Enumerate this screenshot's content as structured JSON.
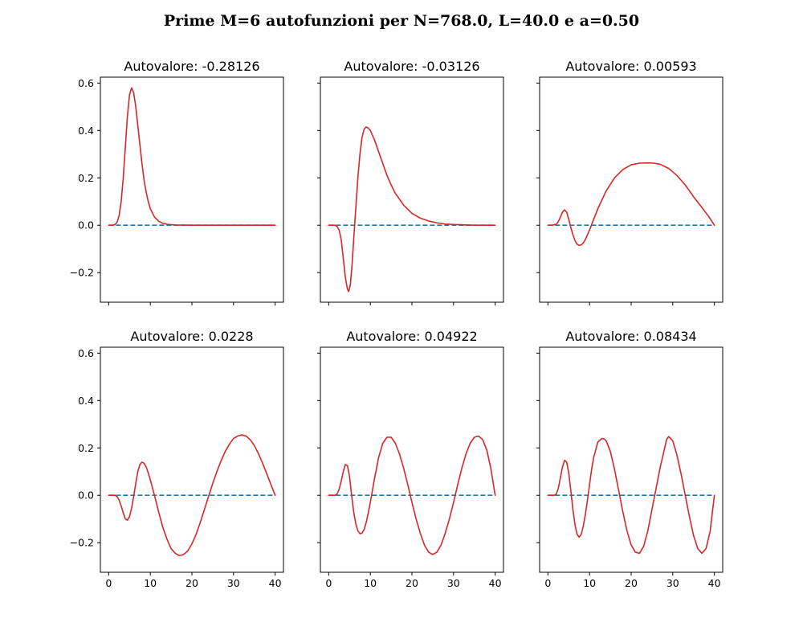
{
  "figure": {
    "title": "Prime M=6 autofunzioni per N=768.0, L=40.0 e a=0.50"
  },
  "chart_data": [
    {
      "type": "line",
      "title": "Autovalore: -0.28126",
      "xlim": [
        -2,
        42
      ],
      "ylim": [
        -0.325,
        0.625
      ],
      "xticks": [
        0,
        10,
        20,
        30,
        40
      ],
      "yticks": [
        -0.2,
        0.0,
        0.2,
        0.4,
        0.6
      ],
      "show_x_labels": false,
      "show_y_labels": true,
      "series": [
        {
          "style": "dashed",
          "color": "#1f77b4",
          "x": [
            0,
            40
          ],
          "y": [
            0,
            0
          ]
        },
        {
          "style": "solid",
          "color": "#d62728",
          "x": [
            0,
            1,
            1.5,
            2,
            2.5,
            3,
            3.5,
            4,
            4.5,
            5,
            5.5,
            6,
            6.5,
            7,
            7.5,
            8,
            8.5,
            9,
            9.5,
            10,
            11,
            12,
            13,
            14,
            16,
            20,
            25,
            30,
            35,
            40
          ],
          "y": [
            0,
            0,
            0.003,
            0.012,
            0.04,
            0.1,
            0.2,
            0.33,
            0.46,
            0.55,
            0.58,
            0.56,
            0.5,
            0.42,
            0.34,
            0.26,
            0.19,
            0.14,
            0.1,
            0.07,
            0.035,
            0.017,
            0.008,
            0.004,
            0.001,
            0,
            0,
            0,
            0,
            0
          ]
        }
      ]
    },
    {
      "type": "line",
      "title": "Autovalore: -0.03126",
      "xlim": [
        -2,
        42
      ],
      "ylim": [
        -0.325,
        0.625
      ],
      "xticks": [
        0,
        10,
        20,
        30,
        40
      ],
      "yticks": [
        -0.2,
        0.0,
        0.2,
        0.4,
        0.6
      ],
      "show_x_labels": false,
      "show_y_labels": false,
      "series": [
        {
          "style": "dashed",
          "color": "#1f77b4",
          "x": [
            0,
            40
          ],
          "y": [
            0,
            0
          ]
        },
        {
          "style": "solid",
          "color": "#d62728",
          "x": [
            0,
            1.5,
            2,
            2.5,
            3,
            3.5,
            4,
            4.5,
            4.8,
            5.2,
            5.6,
            6,
            6.5,
            7,
            7.5,
            8,
            8.5,
            9,
            9.5,
            10,
            11,
            12,
            13,
            14,
            15,
            16,
            18,
            20,
            22,
            24,
            26,
            28,
            30,
            35,
            40
          ],
          "y": [
            0,
            0,
            -0.005,
            -0.02,
            -0.06,
            -0.14,
            -0.22,
            -0.27,
            -0.28,
            -0.25,
            -0.17,
            -0.06,
            0.07,
            0.2,
            0.3,
            0.37,
            0.405,
            0.415,
            0.41,
            0.4,
            0.36,
            0.31,
            0.26,
            0.21,
            0.17,
            0.135,
            0.085,
            0.05,
            0.03,
            0.018,
            0.01,
            0.005,
            0.003,
            0,
            0
          ]
        }
      ]
    },
    {
      "type": "line",
      "title": "Autovalore: 0.00593",
      "xlim": [
        -2,
        42
      ],
      "ylim": [
        -0.325,
        0.625
      ],
      "xticks": [
        0,
        10,
        20,
        30,
        40
      ],
      "yticks": [
        -0.2,
        0.0,
        0.2,
        0.4,
        0.6
      ],
      "show_x_labels": false,
      "show_y_labels": false,
      "series": [
        {
          "style": "dashed",
          "color": "#1f77b4",
          "x": [
            0,
            40
          ],
          "y": [
            0,
            0
          ]
        },
        {
          "style": "solid",
          "color": "#d62728",
          "x": [
            0,
            1,
            2,
            2.5,
            3,
            3.5,
            4,
            4.5,
            5,
            5.5,
            6,
            6.5,
            7,
            7.5,
            8,
            8.5,
            9,
            9.5,
            10,
            11,
            12,
            14,
            16,
            18,
            20,
            22,
            24,
            25.5,
            27,
            29,
            31,
            33,
            35,
            37,
            38.5,
            40
          ],
          "y": [
            0,
            0,
            0.004,
            0.015,
            0.035,
            0.055,
            0.065,
            0.055,
            0.025,
            -0.01,
            -0.04,
            -0.065,
            -0.08,
            -0.085,
            -0.083,
            -0.075,
            -0.06,
            -0.04,
            -0.02,
            0.025,
            0.07,
            0.145,
            0.2,
            0.235,
            0.255,
            0.262,
            0.263,
            0.262,
            0.257,
            0.24,
            0.21,
            0.17,
            0.12,
            0.075,
            0.04,
            0.0
          ]
        }
      ]
    },
    {
      "type": "line",
      "title": "Autovalore: 0.0228",
      "xlim": [
        -2,
        42
      ],
      "ylim": [
        -0.325,
        0.625
      ],
      "xticks": [
        0,
        10,
        20,
        30,
        40
      ],
      "yticks": [
        -0.2,
        0.0,
        0.2,
        0.4,
        0.6
      ],
      "show_x_labels": true,
      "show_y_labels": true,
      "series": [
        {
          "style": "dashed",
          "color": "#1f77b4",
          "x": [
            0,
            40
          ],
          "y": [
            0,
            0
          ]
        },
        {
          "style": "solid",
          "color": "#d62728",
          "x": [
            0,
            1.5,
            2,
            2.5,
            3,
            3.5,
            4,
            4.5,
            5,
            5.5,
            6,
            6.5,
            7,
            7.5,
            8,
            8.5,
            9,
            9.5,
            10,
            11,
            12,
            13,
            14,
            15,
            16,
            17,
            18,
            19,
            20,
            21,
            22,
            23,
            24,
            25,
            26,
            27,
            28,
            29,
            30,
            31,
            32,
            33,
            34,
            35,
            36,
            37,
            38,
            39,
            40
          ],
          "y": [
            0,
            0,
            -0.005,
            -0.02,
            -0.045,
            -0.075,
            -0.1,
            -0.105,
            -0.09,
            -0.055,
            -0.005,
            0.05,
            0.1,
            0.13,
            0.14,
            0.135,
            0.12,
            0.095,
            0.065,
            0.0,
            -0.07,
            -0.135,
            -0.185,
            -0.225,
            -0.245,
            -0.255,
            -0.25,
            -0.235,
            -0.205,
            -0.165,
            -0.115,
            -0.06,
            -0.005,
            0.05,
            0.1,
            0.145,
            0.185,
            0.215,
            0.24,
            0.25,
            0.255,
            0.25,
            0.235,
            0.21,
            0.175,
            0.135,
            0.09,
            0.045,
            0.0
          ]
        }
      ]
    },
    {
      "type": "line",
      "title": "Autovalore: 0.04922",
      "xlim": [
        -2,
        42
      ],
      "ylim": [
        -0.325,
        0.625
      ],
      "xticks": [
        0,
        10,
        20,
        30,
        40
      ],
      "yticks": [
        -0.2,
        0.0,
        0.2,
        0.4,
        0.6
      ],
      "show_x_labels": true,
      "show_y_labels": false,
      "series": [
        {
          "style": "dashed",
          "color": "#1f77b4",
          "x": [
            0,
            40
          ],
          "y": [
            0,
            0
          ]
        },
        {
          "style": "solid",
          "color": "#d62728",
          "x": [
            0,
            1.5,
            2,
            2.5,
            3,
            3.5,
            4,
            4.5,
            5,
            5.5,
            6,
            6.5,
            7,
            7.5,
            8,
            8.5,
            9,
            9.5,
            10,
            11,
            12,
            13,
            14,
            15,
            16,
            17,
            18,
            19,
            20,
            21,
            22,
            23,
            24,
            25,
            26,
            27,
            28,
            29,
            30,
            31,
            32,
            33,
            34,
            35,
            36,
            37,
            38,
            39,
            40
          ],
          "y": [
            0,
            0,
            0.005,
            0.025,
            0.06,
            0.1,
            0.13,
            0.125,
            0.08,
            0.0,
            -0.07,
            -0.12,
            -0.15,
            -0.162,
            -0.16,
            -0.145,
            -0.115,
            -0.075,
            -0.03,
            0.07,
            0.16,
            0.22,
            0.245,
            0.245,
            0.22,
            0.175,
            0.115,
            0.045,
            -0.03,
            -0.1,
            -0.16,
            -0.21,
            -0.24,
            -0.25,
            -0.24,
            -0.21,
            -0.16,
            -0.1,
            -0.03,
            0.045,
            0.115,
            0.175,
            0.22,
            0.245,
            0.25,
            0.235,
            0.19,
            0.11,
            0.0
          ]
        }
      ]
    },
    {
      "type": "line",
      "title": "Autovalore: 0.08434",
      "xlim": [
        -2,
        42
      ],
      "ylim": [
        -0.325,
        0.625
      ],
      "xticks": [
        0,
        10,
        20,
        30,
        40
      ],
      "yticks": [
        -0.2,
        0.0,
        0.2,
        0.4,
        0.6
      ],
      "show_x_labels": true,
      "show_y_labels": false,
      "series": [
        {
          "style": "dashed",
          "color": "#1f77b4",
          "x": [
            0,
            40
          ],
          "y": [
            0,
            0
          ]
        },
        {
          "style": "solid",
          "color": "#d62728",
          "x": [
            0,
            1.5,
            2,
            2.5,
            3,
            3.5,
            4,
            4.5,
            5,
            5.5,
            6,
            6.5,
            7,
            7.5,
            8,
            8.5,
            9,
            9.5,
            10,
            10.5,
            11,
            12,
            13,
            13.5,
            14,
            15,
            16,
            17,
            18,
            19,
            20,
            21,
            22,
            23,
            24,
            25,
            26,
            27,
            28,
            28.5,
            29,
            30,
            31,
            32,
            33,
            34,
            35,
            36,
            37,
            38,
            39,
            40
          ],
          "y": [
            0,
            0,
            0.005,
            0.03,
            0.075,
            0.12,
            0.148,
            0.14,
            0.095,
            0.02,
            -0.06,
            -0.125,
            -0.165,
            -0.177,
            -0.165,
            -0.13,
            -0.08,
            -0.02,
            0.045,
            0.11,
            0.16,
            0.225,
            0.24,
            0.238,
            0.23,
            0.185,
            0.11,
            0.02,
            -0.07,
            -0.15,
            -0.21,
            -0.24,
            -0.245,
            -0.215,
            -0.15,
            -0.06,
            0.03,
            0.12,
            0.195,
            0.235,
            0.248,
            0.23,
            0.17,
            0.09,
            0.0,
            -0.09,
            -0.17,
            -0.225,
            -0.245,
            -0.225,
            -0.15,
            0.0
          ]
        }
      ]
    }
  ]
}
